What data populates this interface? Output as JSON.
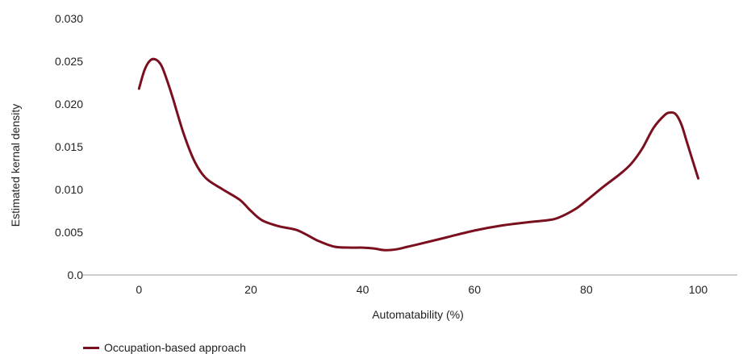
{
  "chart_data": {
    "type": "line",
    "title": "",
    "xlabel": "Automatability (%)",
    "ylabel": "Estimated kernal density",
    "xlim": [
      -10,
      107
    ],
    "ylim": [
      0,
      0.03
    ],
    "x_ticks": [
      0,
      20,
      40,
      60,
      80,
      100
    ],
    "x_tick_labels": [
      "0",
      "20",
      "40",
      "60",
      "80",
      "100"
    ],
    "y_ticks": [
      0,
      0.005,
      0.01,
      0.015,
      0.02,
      0.025,
      0.03
    ],
    "y_tick_labels": [
      "0.0",
      "0.005",
      "0.010",
      "0.015",
      "0.020",
      "0.025",
      "0.030"
    ],
    "grid": false,
    "legend_position": "bottom-left",
    "series": [
      {
        "name": "Occupation-based approach",
        "color": "#7a0f1f",
        "x": [
          0,
          1,
          2,
          3,
          4,
          5,
          6,
          8,
          10,
          12,
          15,
          18,
          20,
          22,
          25,
          28,
          30,
          32,
          35,
          38,
          40,
          42,
          44,
          46,
          48,
          50,
          55,
          60,
          65,
          70,
          73,
          75,
          78,
          80,
          83,
          86,
          88,
          90,
          92,
          94,
          95,
          96,
          97,
          98,
          100
        ],
        "y": [
          0.0218,
          0.024,
          0.0251,
          0.0252,
          0.0245,
          0.0228,
          0.0208,
          0.0165,
          0.0132,
          0.0113,
          0.01,
          0.0088,
          0.0075,
          0.0064,
          0.0057,
          0.0053,
          0.0047,
          0.004,
          0.0033,
          0.0032,
          0.0032,
          0.0031,
          0.0029,
          0.003,
          0.0033,
          0.0036,
          0.0044,
          0.0052,
          0.0058,
          0.0062,
          0.0064,
          0.0067,
          0.0077,
          0.0087,
          0.0103,
          0.0118,
          0.013,
          0.0148,
          0.0172,
          0.0187,
          0.019,
          0.0188,
          0.0176,
          0.0155,
          0.0113
        ]
      }
    ]
  }
}
